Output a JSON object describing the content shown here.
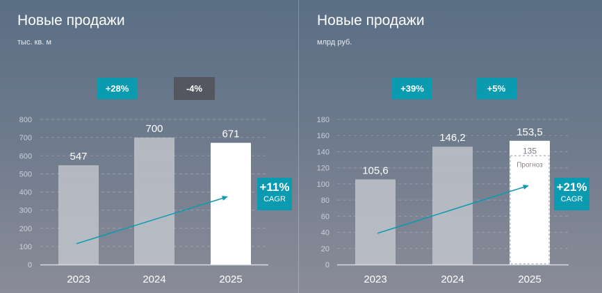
{
  "colors": {
    "accent": "#0b9bb0",
    "negative": "#54575f",
    "bar": "#bfc3ca",
    "bar_current": "#ffffff",
    "forecast_border": "#a8adb5"
  },
  "chart_data": [
    {
      "type": "bar",
      "title": "Новые продажи",
      "unit": "тыс. кв. м",
      "categories": [
        "2023",
        "2024",
        "2025"
      ],
      "values": [
        547,
        700,
        671
      ],
      "value_labels": [
        "547",
        "700",
        "671"
      ],
      "ylim": [
        0,
        800
      ],
      "yticks": [
        "0",
        "100",
        "200",
        "300",
        "400",
        "500",
        "600",
        "700",
        "800"
      ],
      "grid": true,
      "changes": [
        {
          "label": "+28%",
          "color": "#0b9bb0"
        },
        {
          "label": "-4%",
          "color": "#54575f"
        }
      ],
      "cagr": {
        "value": "+11%",
        "label": "CAGR"
      }
    },
    {
      "type": "bar",
      "title": "Новые продажи",
      "unit": "млрд руб.",
      "categories": [
        "2023",
        "2024",
        "2025"
      ],
      "values": [
        105.6,
        146.2,
        153.5
      ],
      "value_labels": [
        "105,6",
        "146,2",
        "153,5"
      ],
      "ylim": [
        0,
        180
      ],
      "yticks": [
        "0",
        "20",
        "40",
        "60",
        "80",
        "100",
        "120",
        "140",
        "160",
        "180"
      ],
      "grid": true,
      "forecast": {
        "value": 135,
        "value_label": "135",
        "label": "Прогноз"
      },
      "changes": [
        {
          "label": "+39%",
          "color": "#0b9bb0"
        },
        {
          "label": "+5%",
          "color": "#0b9bb0"
        }
      ],
      "cagr": {
        "value": "+21%",
        "label": "CAGR"
      }
    }
  ]
}
